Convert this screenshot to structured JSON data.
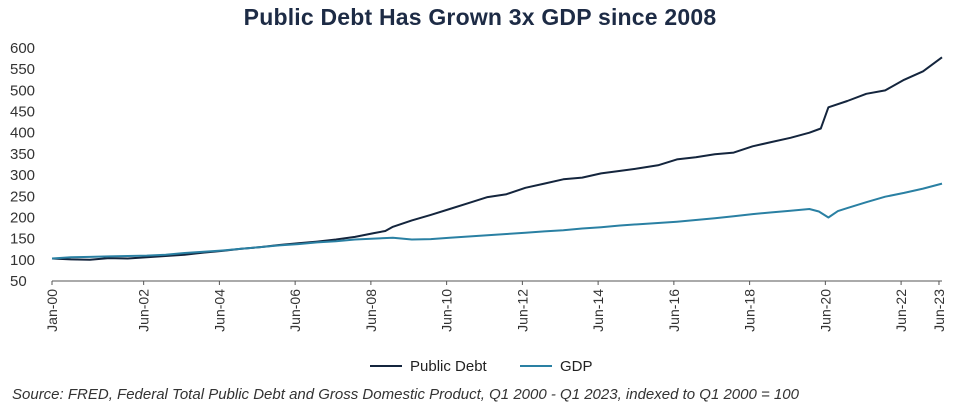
{
  "chart_data": {
    "type": "line",
    "title": "Public Debt Has Grown 3x GDP since 2008",
    "source": "Source:  FRED, Federal Total Public Debt and Gross Domestic Product, Q1 2000 - Q1 2023, indexed to Q1 2000 = 100",
    "ylim": [
      50,
      600
    ],
    "yticks": [
      50,
      100,
      150,
      200,
      250,
      300,
      350,
      400,
      450,
      500,
      550,
      600
    ],
    "xlim": [
      2000.0,
      2023.5
    ],
    "xtick_labels": [
      {
        "label": "Jan-00",
        "x": 2000.0
      },
      {
        "label": "Jun-02",
        "x": 2002.42
      },
      {
        "label": "Jun-04",
        "x": 2004.42
      },
      {
        "label": "Jun-06",
        "x": 2006.42
      },
      {
        "label": "Jun-08",
        "x": 2008.42
      },
      {
        "label": "Jun-10",
        "x": 2010.42
      },
      {
        "label": "Jun-12",
        "x": 2012.42
      },
      {
        "label": "Jun-14",
        "x": 2014.42
      },
      {
        "label": "Jun-16",
        "x": 2016.42
      },
      {
        "label": "Jun-18",
        "x": 2018.42
      },
      {
        "label": "Jun-20",
        "x": 2020.42
      },
      {
        "label": "Jun-22",
        "x": 2022.42
      },
      {
        "label": "Jun-23",
        "x": 2023.42
      }
    ],
    "series": [
      {
        "name": "Public Debt",
        "color": "#14253d",
        "points": [
          [
            2000.0,
            103
          ],
          [
            2000.5,
            101
          ],
          [
            2001.0,
            100
          ],
          [
            2001.5,
            104
          ],
          [
            2002.0,
            103
          ],
          [
            2002.5,
            106
          ],
          [
            2003.0,
            109
          ],
          [
            2003.5,
            112
          ],
          [
            2004.0,
            117
          ],
          [
            2004.5,
            121
          ],
          [
            2005.0,
            126
          ],
          [
            2005.5,
            130
          ],
          [
            2006.0,
            135
          ],
          [
            2006.5,
            139
          ],
          [
            2007.0,
            143
          ],
          [
            2007.5,
            148
          ],
          [
            2008.0,
            154
          ],
          [
            2008.5,
            163
          ],
          [
            2008.8,
            168
          ],
          [
            2009.0,
            178
          ],
          [
            2009.5,
            193
          ],
          [
            2010.0,
            206
          ],
          [
            2010.5,
            220
          ],
          [
            2011.0,
            234
          ],
          [
            2011.5,
            248
          ],
          [
            2012.0,
            255
          ],
          [
            2012.5,
            270
          ],
          [
            2013.0,
            280
          ],
          [
            2013.5,
            290
          ],
          [
            2014.0,
            294
          ],
          [
            2014.5,
            304
          ],
          [
            2015.0,
            310
          ],
          [
            2015.5,
            316
          ],
          [
            2016.0,
            323
          ],
          [
            2016.5,
            337
          ],
          [
            2017.0,
            342
          ],
          [
            2017.5,
            349
          ],
          [
            2018.0,
            353
          ],
          [
            2018.5,
            368
          ],
          [
            2019.0,
            378
          ],
          [
            2019.5,
            388
          ],
          [
            2020.0,
            400
          ],
          [
            2020.3,
            410
          ],
          [
            2020.5,
            460
          ],
          [
            2021.0,
            475
          ],
          [
            2021.5,
            492
          ],
          [
            2022.0,
            500
          ],
          [
            2022.5,
            525
          ],
          [
            2023.0,
            545
          ],
          [
            2023.5,
            578
          ]
        ]
      },
      {
        "name": "GDP",
        "color": "#2a80a3",
        "points": [
          [
            2000.0,
            103
          ],
          [
            2000.5,
            106
          ],
          [
            2001.0,
            107
          ],
          [
            2001.5,
            108
          ],
          [
            2002.0,
            109
          ],
          [
            2002.5,
            110
          ],
          [
            2003.0,
            112
          ],
          [
            2003.5,
            116
          ],
          [
            2004.0,
            119
          ],
          [
            2004.5,
            122
          ],
          [
            2005.0,
            126
          ],
          [
            2005.5,
            130
          ],
          [
            2006.0,
            134
          ],
          [
            2006.5,
            137
          ],
          [
            2007.0,
            141
          ],
          [
            2007.5,
            144
          ],
          [
            2008.0,
            148
          ],
          [
            2008.5,
            150
          ],
          [
            2009.0,
            152
          ],
          [
            2009.5,
            148
          ],
          [
            2010.0,
            149
          ],
          [
            2010.5,
            152
          ],
          [
            2011.0,
            155
          ],
          [
            2011.5,
            158
          ],
          [
            2012.0,
            161
          ],
          [
            2012.5,
            164
          ],
          [
            2013.0,
            167
          ],
          [
            2013.5,
            170
          ],
          [
            2014.0,
            174
          ],
          [
            2014.5,
            177
          ],
          [
            2015.0,
            181
          ],
          [
            2015.5,
            184
          ],
          [
            2016.0,
            187
          ],
          [
            2016.5,
            190
          ],
          [
            2017.0,
            194
          ],
          [
            2017.5,
            198
          ],
          [
            2018.0,
            203
          ],
          [
            2018.5,
            208
          ],
          [
            2019.0,
            212
          ],
          [
            2019.5,
            216
          ],
          [
            2020.0,
            220
          ],
          [
            2020.25,
            214
          ],
          [
            2020.5,
            200
          ],
          [
            2020.75,
            215
          ],
          [
            2021.0,
            222
          ],
          [
            2021.5,
            236
          ],
          [
            2022.0,
            249
          ],
          [
            2022.5,
            258
          ],
          [
            2023.0,
            268
          ],
          [
            2023.5,
            280
          ]
        ]
      }
    ]
  }
}
